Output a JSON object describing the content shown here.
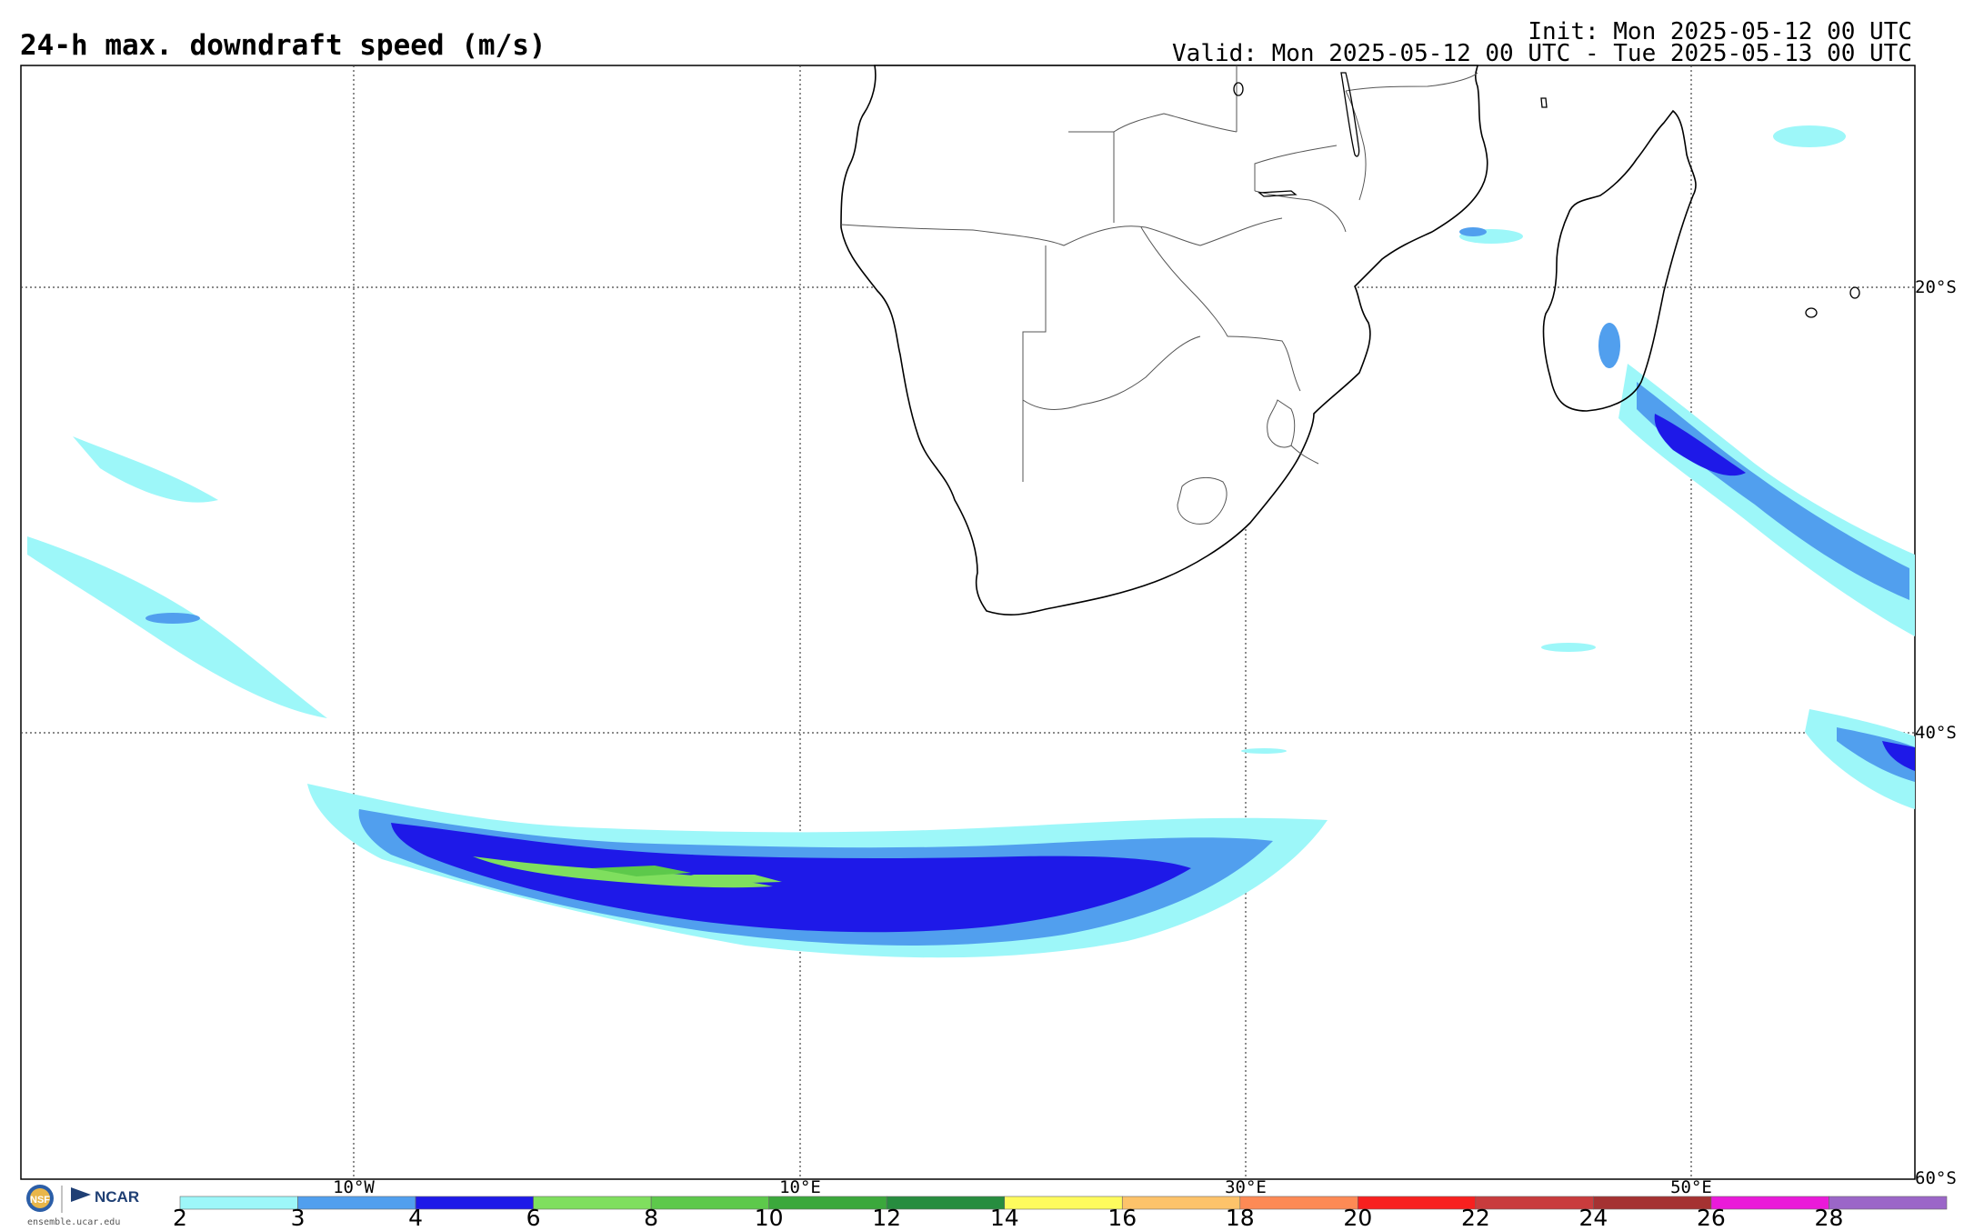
{
  "header": {
    "title": "24-h max. downdraft speed (m/s)",
    "init": "Init: Mon 2025-05-12 00 UTC",
    "valid": "Valid: Mon 2025-05-12 00 UTC - Tue 2025-05-13 00 UTC"
  },
  "map": {
    "region": "Southern Africa and adjacent South Atlantic / Indian Ocean",
    "lon_labels": [
      "10°W",
      "10°E",
      "30°E",
      "50°E"
    ],
    "lat_labels": [
      "20°S",
      "40°S",
      "60°S"
    ]
  },
  "colorbar": {
    "units": "m/s",
    "ticks": [
      "2",
      "3",
      "4",
      "6",
      "8",
      "10",
      "12",
      "14",
      "16",
      "18",
      "20",
      "22",
      "24",
      "26",
      "28"
    ],
    "colors": [
      "#9df7f9",
      "#519fee",
      "#1e19e8",
      "#7fdf5e",
      "#5dc94b",
      "#3ba83c",
      "#278d3f",
      "#fefb5d",
      "#fdc36a",
      "#fd8a55",
      "#f8201f",
      "#c93c3d",
      "#a53232",
      "#ea1ad9",
      "#9b66c8"
    ]
  },
  "footer": {
    "logo_text": "NCAR",
    "url": "ensemble.ucar.edu"
  }
}
